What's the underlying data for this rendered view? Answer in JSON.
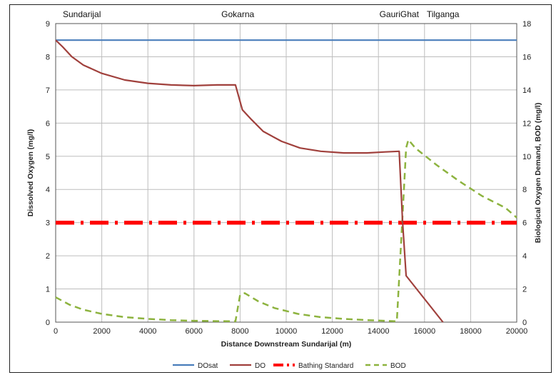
{
  "chart_data": {
    "type": "line",
    "title": "",
    "xlabel": "Distance Downstream Sundarijal  (m)",
    "ylabel_left": "Dissolved Oxygen (mg/l)",
    "ylabel_right": "Biological Oxygen Demand, BOD (mg/l)",
    "xlim": [
      0,
      20000
    ],
    "ylim_left": [
      0,
      9
    ],
    "ylim_right": [
      0,
      18
    ],
    "x_ticks": [
      0,
      2000,
      4000,
      6000,
      8000,
      10000,
      12000,
      14000,
      16000,
      18000,
      20000
    ],
    "y_left_ticks": [
      0,
      1,
      2,
      3,
      4,
      5,
      6,
      7,
      8,
      9
    ],
    "y_right_ticks": [
      0,
      2,
      4,
      6,
      8,
      10,
      12,
      14,
      16,
      18
    ],
    "grid": true,
    "legend_position": "bottom",
    "annotations": [
      {
        "text": "Sundarijal",
        "x": 0
      },
      {
        "text": "Gokarna",
        "x": 7900
      },
      {
        "text": "GauriGhat",
        "x": 14900
      },
      {
        "text": "Tilganga",
        "x": 16800
      }
    ],
    "series": [
      {
        "name": "DOsat",
        "axis": "left",
        "color": "#4a7ebb",
        "style": "solid",
        "x": [
          0,
          20000
        ],
        "y": [
          8.5,
          8.5
        ]
      },
      {
        "name": "DO",
        "axis": "left",
        "color": "#a0403c",
        "style": "solid",
        "x": [
          0,
          300,
          700,
          1200,
          2000,
          3000,
          4000,
          5000,
          6000,
          7000,
          7800,
          8100,
          8500,
          9000,
          9800,
          10600,
          11500,
          12500,
          13500,
          14300,
          14900,
          15050,
          15200,
          16000,
          16800
        ],
        "y": [
          8.5,
          8.3,
          8.0,
          7.75,
          7.5,
          7.3,
          7.2,
          7.15,
          7.13,
          7.15,
          7.15,
          6.4,
          6.1,
          5.75,
          5.45,
          5.25,
          5.15,
          5.1,
          5.1,
          5.13,
          5.15,
          3.0,
          1.4,
          0.7,
          0.0
        ]
      },
      {
        "name": "Bathing Standard",
        "axis": "left",
        "color": "#ff0000",
        "style": "dash-dot",
        "x": [
          0,
          20000
        ],
        "y": [
          3,
          3
        ]
      },
      {
        "name": "BOD",
        "axis": "right",
        "color": "#8db33f",
        "style": "dashed",
        "x": [
          0,
          600,
          1200,
          2000,
          3000,
          4000,
          5000,
          6000,
          7000,
          7800,
          8000,
          8200,
          8800,
          9500,
          10500,
          11500,
          12500,
          13500,
          14300,
          14800,
          15050,
          15200,
          15300,
          15600,
          16500,
          17500,
          18500,
          19500,
          20000
        ],
        "y": [
          1.5,
          1.05,
          0.75,
          0.5,
          0.3,
          0.2,
          0.12,
          0.08,
          0.06,
          0.05,
          1.65,
          1.75,
          1.25,
          0.85,
          0.5,
          0.3,
          0.2,
          0.12,
          0.08,
          0.05,
          6.5,
          10.5,
          11.0,
          10.5,
          9.5,
          8.5,
          7.6,
          6.9,
          6.3
        ]
      }
    ]
  }
}
